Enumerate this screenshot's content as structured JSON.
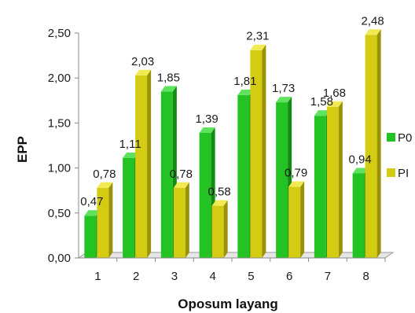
{
  "chart_data": {
    "type": "bar",
    "categories": [
      "1",
      "2",
      "3",
      "4",
      "5",
      "6",
      "7",
      "8"
    ],
    "series": [
      {
        "name": "P0",
        "values": [
          0.47,
          1.11,
          1.85,
          1.39,
          1.81,
          1.73,
          1.58,
          0.94
        ],
        "labels": [
          "0,47",
          "1,11",
          "1,85",
          "1,39",
          "1,81",
          "1,73",
          "1,58",
          "0,94"
        ],
        "color": "#22c322",
        "top_color": "#5fe35f",
        "side_color": "#128c12"
      },
      {
        "name": "PI",
        "values": [
          0.78,
          2.03,
          0.78,
          0.58,
          2.31,
          0.79,
          1.68,
          2.48
        ],
        "labels": [
          "0,78",
          "2,03",
          "0,78",
          "0,58",
          "2,31",
          "0,79",
          "1,68",
          "2,48"
        ],
        "color": "#d4cc12",
        "top_color": "#f2ea52",
        "side_color": "#9a9308"
      }
    ],
    "xlabel": "Oposum layang",
    "ylabel": "EPP",
    "ylim": [
      0,
      2.5
    ],
    "yticks": [
      "0,00",
      "0,50",
      "1,00",
      "1,50",
      "2,00",
      "2,50"
    ],
    "legend_position": "right",
    "grid": false
  }
}
